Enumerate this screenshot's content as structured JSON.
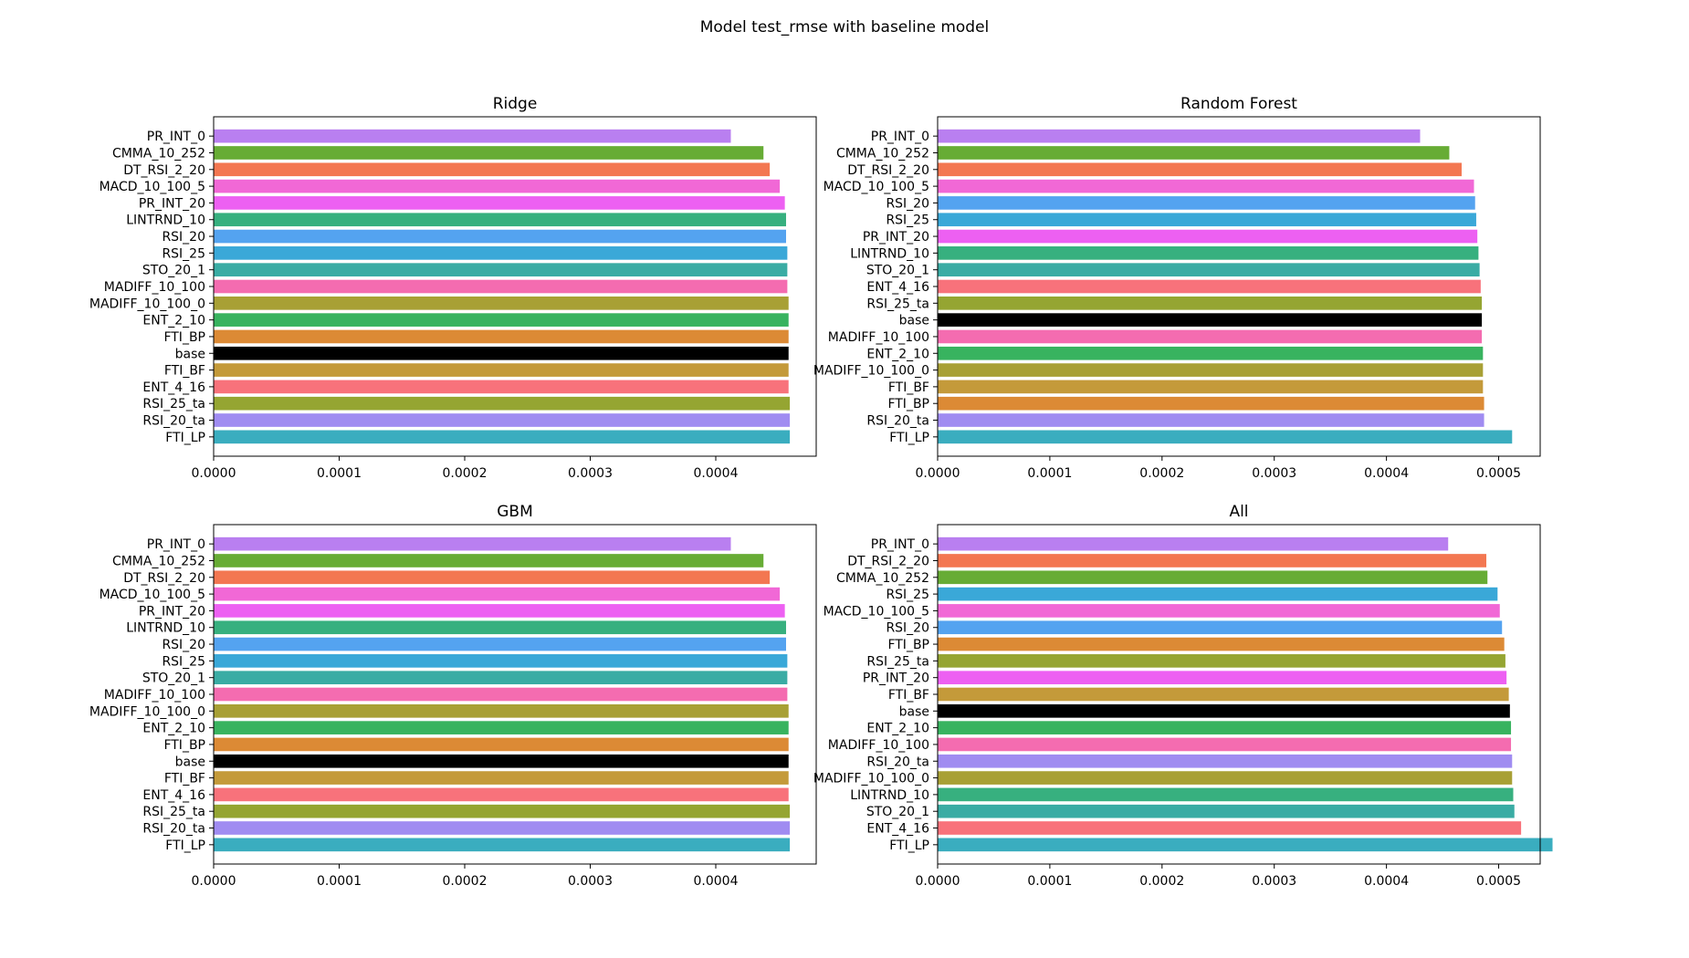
{
  "figure": {
    "title": "Model test_rmse with baseline model"
  },
  "chart_data": [
    {
      "type": "bar",
      "orientation": "horizontal",
      "title": "Ridge",
      "xlabel": "",
      "ylabel": "",
      "xlim": [
        0,
        0.00048
      ],
      "xticks": [
        "0.0000",
        "0.0001",
        "0.0002",
        "0.0003",
        "0.0004"
      ],
      "grid": false,
      "categories": [
        "PR_INT_0",
        "CMMA_10_252",
        "DT_RSI_2_20",
        "MACD_10_100_5",
        "PR_INT_20",
        "LINTRND_10",
        "RSI_20",
        "RSI_25",
        "STO_20_1",
        "MADIFF_10_100",
        "MADIFF_10_100_0",
        "ENT_2_10",
        "FTI_BP",
        "base",
        "FTI_BF",
        "ENT_4_16",
        "RSI_25_ta",
        "RSI_20_ta",
        "FTI_LP"
      ],
      "values": [
        0.000412,
        0.000438,
        0.000443,
        0.000451,
        0.000455,
        0.000456,
        0.000456,
        0.000457,
        0.000457,
        0.000457,
        0.000458,
        0.000458,
        0.000458,
        0.000458,
        0.000458,
        0.000458,
        0.000459,
        0.000459,
        0.000459
      ],
      "colors": [
        "#b97ff0",
        "#67ac35",
        "#f37751",
        "#f168d6",
        "#ed60f2",
        "#37b07f",
        "#54a3f0",
        "#3aa8d8",
        "#3aaca4",
        "#f46cb0",
        "#a8a035",
        "#38b35f",
        "#dc8a35",
        "#000000",
        "#c49a3a",
        "#f8727b",
        "#95a532",
        "#a08cf1",
        "#3aadbf"
      ]
    },
    {
      "type": "bar",
      "orientation": "horizontal",
      "title": "Random Forest",
      "xlabel": "",
      "ylabel": "",
      "xlim": [
        0,
        0.000537
      ],
      "xticks": [
        "0.0000",
        "0.0001",
        "0.0002",
        "0.0003",
        "0.0004",
        "0.0005"
      ],
      "grid": false,
      "categories": [
        "PR_INT_0",
        "CMMA_10_252",
        "DT_RSI_2_20",
        "MACD_10_100_5",
        "RSI_20",
        "RSI_25",
        "PR_INT_20",
        "LINTRND_10",
        "STO_20_1",
        "ENT_4_16",
        "RSI_25_ta",
        "base",
        "MADIFF_10_100",
        "ENT_2_10",
        "MADIFF_10_100_0",
        "FTI_BF",
        "FTI_BP",
        "RSI_20_ta",
        "FTI_LP"
      ],
      "values": [
        0.00043,
        0.000456,
        0.000467,
        0.000478,
        0.000479,
        0.00048,
        0.000481,
        0.000482,
        0.000483,
        0.000484,
        0.000485,
        0.000485,
        0.000485,
        0.000486,
        0.000486,
        0.000486,
        0.000487,
        0.000487,
        0.000512
      ],
      "colors": [
        "#b97ff0",
        "#67ac35",
        "#f37751",
        "#f168d6",
        "#54a3f0",
        "#3aa8d8",
        "#ed60f2",
        "#37b07f",
        "#3aaca4",
        "#f8727b",
        "#95a532",
        "#000000",
        "#f46cb0",
        "#38b35f",
        "#a8a035",
        "#c49a3a",
        "#dc8a35",
        "#a08cf1",
        "#3aadbf"
      ]
    },
    {
      "type": "bar",
      "orientation": "horizontal",
      "title": "GBM",
      "xlabel": "",
      "ylabel": "",
      "xlim": [
        0,
        0.00048
      ],
      "xticks": [
        "0.0000",
        "0.0001",
        "0.0002",
        "0.0003",
        "0.0004"
      ],
      "grid": false,
      "categories": [
        "PR_INT_0",
        "CMMA_10_252",
        "DT_RSI_2_20",
        "MACD_10_100_5",
        "PR_INT_20",
        "LINTRND_10",
        "RSI_20",
        "RSI_25",
        "STO_20_1",
        "MADIFF_10_100",
        "MADIFF_10_100_0",
        "ENT_2_10",
        "FTI_BP",
        "base",
        "FTI_BF",
        "ENT_4_16",
        "RSI_25_ta",
        "RSI_20_ta",
        "FTI_LP"
      ],
      "values": [
        0.000412,
        0.000438,
        0.000443,
        0.000451,
        0.000455,
        0.000456,
        0.000456,
        0.000457,
        0.000457,
        0.000457,
        0.000458,
        0.000458,
        0.000458,
        0.000458,
        0.000458,
        0.000458,
        0.000459,
        0.000459,
        0.000459
      ],
      "colors": [
        "#b97ff0",
        "#67ac35",
        "#f37751",
        "#f168d6",
        "#ed60f2",
        "#37b07f",
        "#54a3f0",
        "#3aa8d8",
        "#3aaca4",
        "#f46cb0",
        "#a8a035",
        "#38b35f",
        "#dc8a35",
        "#000000",
        "#c49a3a",
        "#f8727b",
        "#95a532",
        "#a08cf1",
        "#3aadbf"
      ]
    },
    {
      "type": "bar",
      "orientation": "horizontal",
      "title": "All",
      "xlabel": "",
      "ylabel": "",
      "xlim": [
        0,
        0.000537
      ],
      "xticks": [
        "0.0000",
        "0.0001",
        "0.0002",
        "0.0003",
        "0.0004",
        "0.0005"
      ],
      "grid": false,
      "categories": [
        "PR_INT_0",
        "DT_RSI_2_20",
        "CMMA_10_252",
        "RSI_25",
        "MACD_10_100_5",
        "RSI_20",
        "FTI_BP",
        "RSI_25_ta",
        "PR_INT_20",
        "FTI_BF",
        "base",
        "ENT_2_10",
        "MADIFF_10_100",
        "RSI_20_ta",
        "MADIFF_10_100_0",
        "LINTRND_10",
        "STO_20_1",
        "ENT_4_16",
        "FTI_LP"
      ],
      "values": [
        0.000455,
        0.000489,
        0.00049,
        0.000499,
        0.000501,
        0.000503,
        0.000505,
        0.000506,
        0.000507,
        0.000509,
        0.00051,
        0.000511,
        0.000511,
        0.000512,
        0.000512,
        0.000513,
        0.000514,
        0.00052,
        0.000548
      ],
      "colors": [
        "#b97ff0",
        "#f37751",
        "#67ac35",
        "#3aa8d8",
        "#f168d6",
        "#54a3f0",
        "#dc8a35",
        "#95a532",
        "#ed60f2",
        "#c49a3a",
        "#000000",
        "#38b35f",
        "#f46cb0",
        "#a08cf1",
        "#a8a035",
        "#37b07f",
        "#3aaca4",
        "#f8727b",
        "#3aadbf"
      ]
    }
  ]
}
